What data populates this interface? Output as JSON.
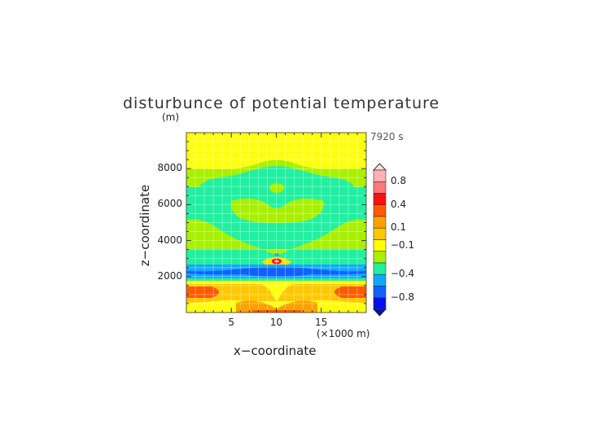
{
  "chart_data": {
    "type": "heatmap",
    "title": "disturbunce of potential temperature",
    "time_label": "7920 s",
    "xlabel": "x−coordinate",
    "x_unit": "(×1000 m)",
    "ylabel": "z−coordinate",
    "y_unit": "(m)",
    "xlim": [
      0,
      20
    ],
    "ylim": [
      0,
      10000
    ],
    "x_ticks": [
      "5",
      "10",
      "15"
    ],
    "y_ticks": [
      "2000",
      "4000",
      "6000",
      "8000"
    ],
    "grid": true,
    "colorbar": {
      "colors": [
        "#ffb0b0",
        "#ff7878",
        "#ff1010",
        "#ff5a00",
        "#ffa000",
        "#ffc800",
        "#ffff00",
        "#a8f000",
        "#20f0a0",
        "#10a8ff",
        "#1060ff",
        "#0010f0"
      ],
      "tick_labels": [
        "0.8",
        "0.4",
        "0.1",
        "−0.1",
        "−0.4",
        "−0.8"
      ],
      "extend": "both",
      "position": "right"
    }
  }
}
